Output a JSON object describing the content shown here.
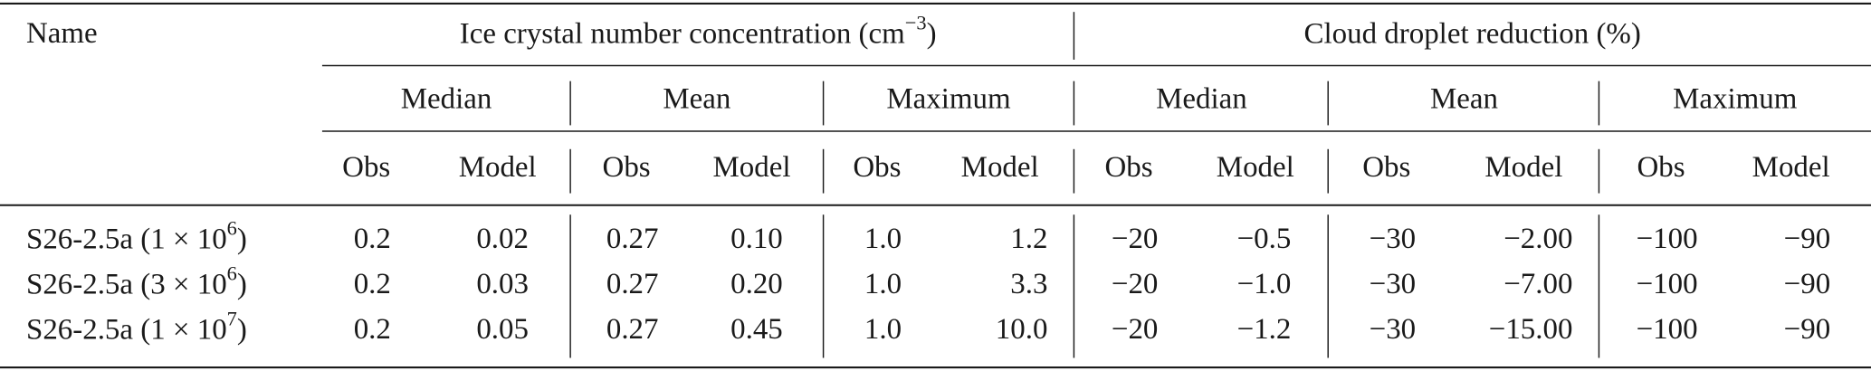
{
  "table": {
    "name_header": "Name",
    "groups": [
      {
        "title": {
          "text": "Ice crystal number concentration (cm",
          "sup": "−3",
          "after": ")"
        },
        "stats": [
          "Median",
          "Mean",
          "Maximum"
        ]
      },
      {
        "title": {
          "text": "Cloud droplet reduction (%)"
        },
        "stats": [
          "Median",
          "Mean",
          "Maximum"
        ]
      }
    ],
    "column_labels": [
      "Obs",
      "Model",
      "Obs",
      "Model",
      "Obs",
      "Model",
      "Obs",
      "Model",
      "Obs",
      "Model",
      "Obs",
      "Model"
    ],
    "rows": [
      {
        "name": {
          "text": "S26-2.5a (1 × 10",
          "sup": "6",
          "after": ")"
        },
        "values": [
          "0.2",
          "0.02",
          "0.27",
          "0.10",
          "1.0",
          "1.2",
          "−20",
          "−0.5",
          "−30",
          "−2.00",
          "−100",
          "−90"
        ]
      },
      {
        "name": {
          "text": "S26-2.5a (3 × 10",
          "sup": "6",
          "after": ")"
        },
        "values": [
          "0.2",
          "0.03",
          "0.27",
          "0.20",
          "1.0",
          "3.3",
          "−20",
          "−1.0",
          "−30",
          "−7.00",
          "−100",
          "−90"
        ]
      },
      {
        "name": {
          "text": "S26-2.5a (1 × 10",
          "sup": "7",
          "after": ")"
        },
        "values": [
          "0.2",
          "0.05",
          "0.27",
          "0.45",
          "1.0",
          "10.0",
          "−20",
          "−1.2",
          "−30",
          "−15.00",
          "−100",
          "−90"
        ]
      }
    ]
  }
}
